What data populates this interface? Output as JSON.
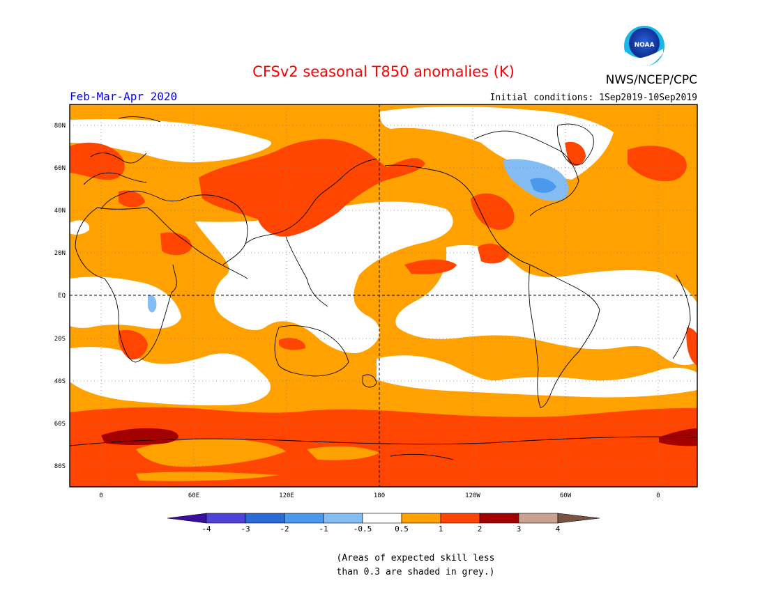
{
  "header": {
    "title": "CFSv2 seasonal T850 anomalies (K)",
    "agency": "NWS/NCEP/CPC",
    "logo_text": "NOAA",
    "season": "Feb-Mar-Apr 2020",
    "initial_conditions": "Initial conditions: 1Sep2019-10Sep2019"
  },
  "map": {
    "projection": "cylindrical equidistant",
    "lon_range": [
      -20,
      380
    ],
    "lat_range": [
      -90,
      90
    ],
    "x_ticks": [
      "0",
      "60E",
      "120E",
      "180",
      "120W",
      "60W",
      "0"
    ],
    "y_ticks": [
      "80N",
      "60N",
      "40N",
      "20N",
      "EQ",
      "20S",
      "40S",
      "60S",
      "80S"
    ],
    "grid": "dotted, every 60 degrees longitude and 20 degrees latitude",
    "reference_lines": "equator and 180 meridian dashed",
    "background_color": "#ffffff",
    "dominant_category": "0.5 to 1"
  },
  "colorbar": {
    "tick_labels": [
      "-4",
      "-3",
      "-2",
      "-1",
      "-0.5",
      "0.5",
      "1",
      "2",
      "3",
      "4"
    ],
    "colors": [
      "#3a0e9c",
      "#4e43d6",
      "#2a6ad6",
      "#4b98ef",
      "#83bdf3",
      "#ffffff",
      "#ffa100",
      "#ff4500",
      "#a30000",
      "#c9a290",
      "#7a5244"
    ],
    "extends": "both ends (triangles)"
  },
  "legend_note": {
    "line1": "(Areas of expected skill less",
    "line2": "than 0.3 are shaded in grey.)"
  },
  "colors": {
    "title": "#ff0000",
    "season": "#0000ff",
    "text": "#000000",
    "neutral": "#ffffff",
    "warm1": "#ffa100",
    "warm2": "#ff4500",
    "warm3": "#a30000",
    "cool1": "#83bdf3",
    "cool2": "#4b98ef"
  }
}
